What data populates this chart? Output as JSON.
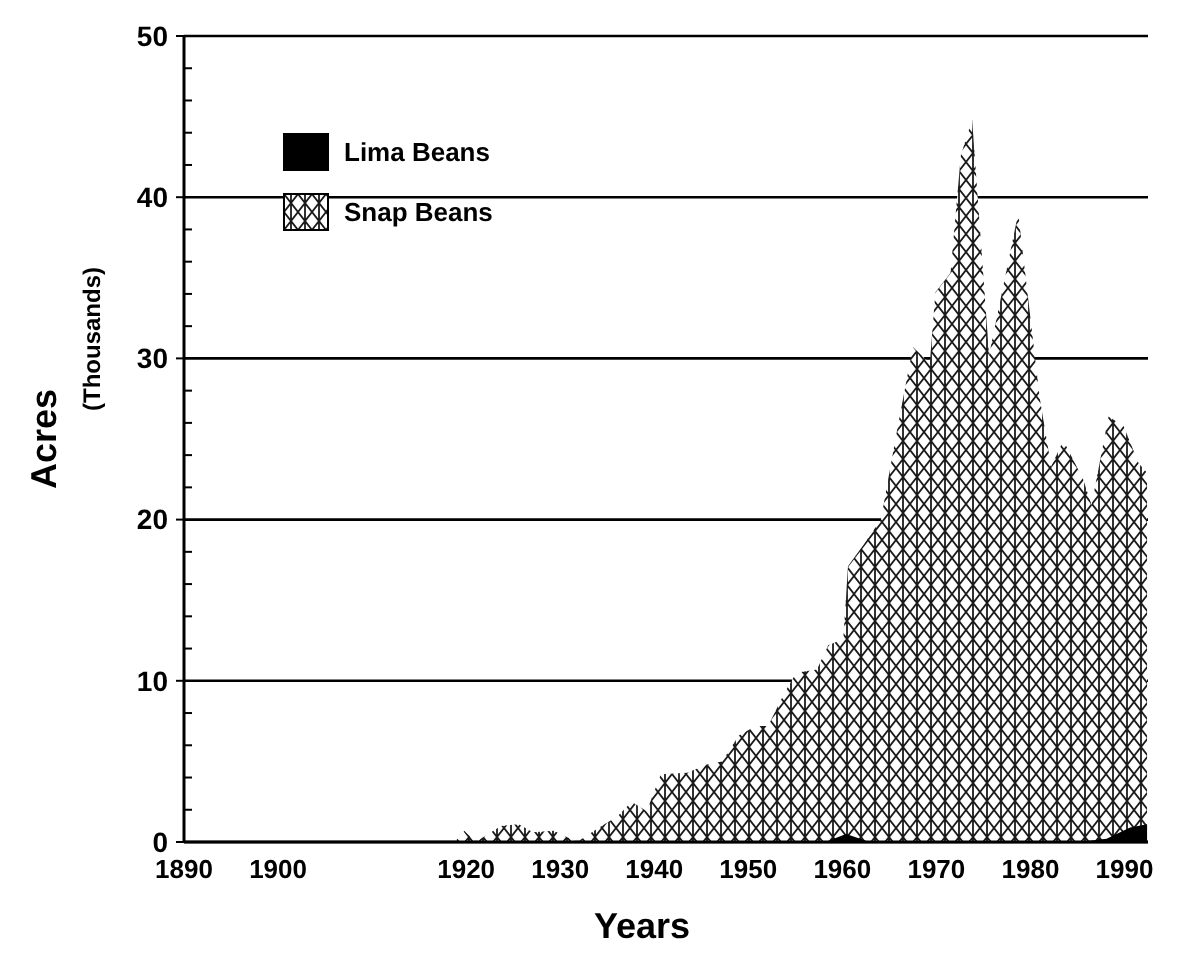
{
  "chart_data": {
    "type": "area",
    "xlabel": "Years",
    "ylabel": "Acres\n(Thousands)",
    "xlim": [
      1890,
      1992.5
    ],
    "ylim": [
      0,
      50
    ],
    "xticks": [
      1890,
      1900,
      1920,
      1930,
      1940,
      1950,
      1960,
      1970,
      1980,
      1990
    ],
    "yticks": [
      0,
      10,
      20,
      30,
      40,
      50
    ],
    "grid": "y",
    "legend": "top left",
    "series": [
      {
        "name": "Snap Beans",
        "color": "#1a1a1a",
        "x": [
          1900,
          1918.8,
          1919.8,
          1921,
          1923.7,
          1925.6,
          1927.1,
          1929.3,
          1931.8,
          1933.9,
          1936.1,
          1937.6,
          1939.2,
          1940.7,
          1943.5,
          1945.6,
          1947.2,
          1949,
          1950.8,
          1952.1,
          1953.9,
          1955.1,
          1957.3,
          1958.5,
          1960.1,
          1960.6,
          1962.2,
          1964.1,
          1965.9,
          1967.5,
          1969.3,
          1969.9,
          1971.5,
          1972.6,
          1973.8,
          1975.6,
          1978.7,
          1981,
          1982.2,
          1983.5,
          1985.6,
          1986.5,
          1988.3,
          1989.9,
          1991.5,
          1992.4
        ],
        "values": [
          0,
          0,
          0.7,
          0,
          1,
          1.1,
          0.6,
          0.7,
          0,
          0.8,
          1.6,
          2.5,
          1.9,
          4.2,
          4.3,
          4.8,
          5,
          6.6,
          7.2,
          7.2,
          9.3,
          10.5,
          10.7,
          12.2,
          12.6,
          17.1,
          18.4,
          20,
          25.8,
          30.7,
          29.7,
          34.1,
          35.3,
          42.6,
          44.8,
          30.2,
          39,
          27.5,
          23.3,
          24.9,
          22.5,
          20.9,
          26.4,
          25.8,
          23.5,
          22.9
        ]
      },
      {
        "name": "Lima Beans",
        "color": "#000000",
        "x": [
          1900,
          1958.2,
          1960.4,
          1962.9,
          1985,
          1988.1,
          1990.6,
          1992.4
        ],
        "values": [
          0,
          0,
          0.5,
          0,
          0,
          0.2,
          0.9,
          1.1
        ]
      }
    ]
  }
}
